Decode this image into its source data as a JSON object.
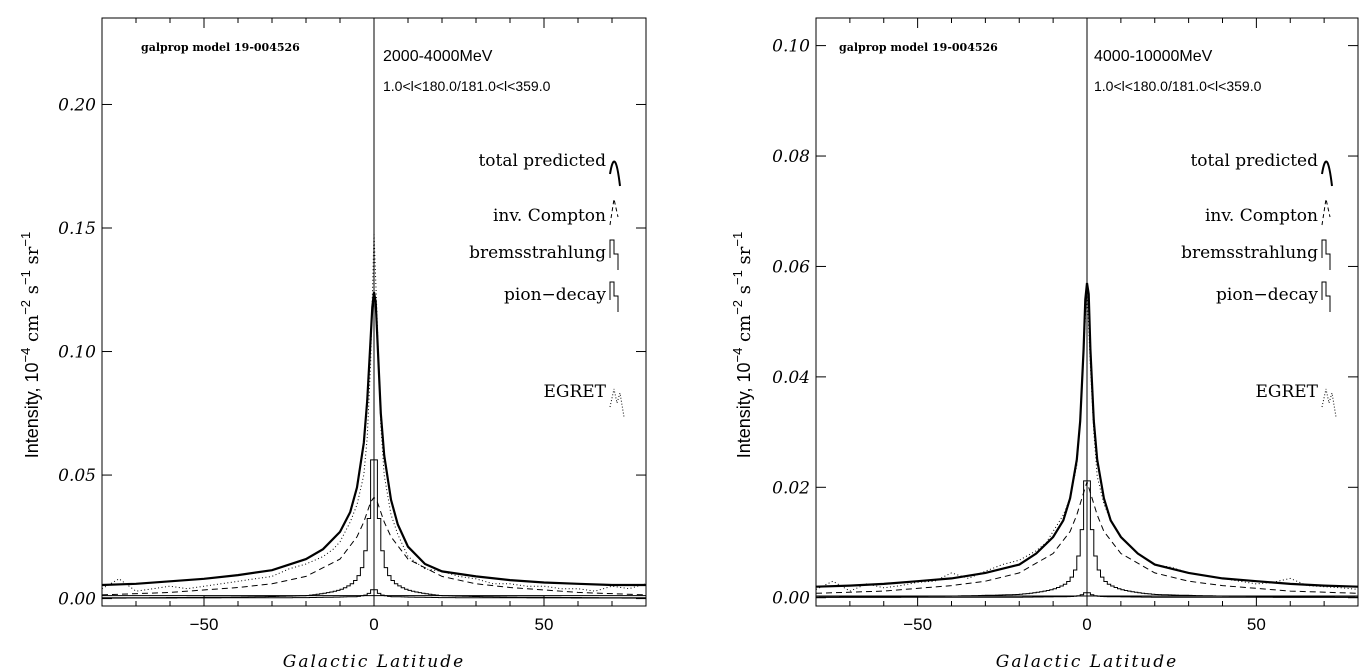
{
  "chart_data": [
    {
      "type": "line",
      "panel": "left",
      "model_label": "galprop model 19-004526",
      "energy_label": "2000-4000MeV",
      "region_label": "1.0<l<180.0/181.0<l<359.0",
      "xlabel": "Galactic Latitude",
      "ylabel": "Intensity, 10^-4 cm^-2 s^-1 sr^-1",
      "ylabel_parts": {
        "main": "Intensity, 10",
        "exp1": "−4",
        "cm": " cm",
        "exp2": "−2",
        "s": "  s",
        "exp3": "−1",
        "sr": " sr",
        "exp4": "−1"
      },
      "xlim": [
        -80,
        80
      ],
      "ylim": [
        -0.003,
        0.235
      ],
      "xticks": [
        -50,
        0,
        50
      ],
      "xtick_labels": [
        "−50",
        "0",
        "50"
      ],
      "yticks": [
        0.0,
        0.05,
        0.1,
        0.15,
        0.2
      ],
      "ytick_labels": [
        "0.00",
        "0.05",
        "0.10",
        "0.15",
        "0.20"
      ],
      "legend": {
        "placement": "right",
        "entries": [
          {
            "label": "total predicted",
            "style": "thick-solid"
          },
          {
            "label": "inv. Compton",
            "style": "dashed"
          },
          {
            "label": "bremsstrahlung",
            "style": "histogram"
          },
          {
            "label": "pion−decay",
            "style": "histogram"
          },
          {
            "label": "EGRET",
            "style": "dotted"
          }
        ]
      },
      "series": [
        {
          "name": "total predicted",
          "x": [
            -80,
            -70,
            -60,
            -50,
            -40,
            -30,
            -20,
            -15,
            -10,
            -7,
            -5,
            -3,
            -2,
            -1,
            -0.5,
            0,
            0.5,
            1,
            2,
            3,
            5,
            7,
            10,
            15,
            20,
            30,
            40,
            50,
            60,
            70,
            80
          ],
          "y": [
            0.0055,
            0.006,
            0.007,
            0.008,
            0.0095,
            0.0115,
            0.016,
            0.02,
            0.027,
            0.035,
            0.045,
            0.063,
            0.08,
            0.105,
            0.118,
            0.124,
            0.12,
            0.105,
            0.075,
            0.058,
            0.04,
            0.03,
            0.021,
            0.014,
            0.011,
            0.009,
            0.0075,
            0.0065,
            0.006,
            0.0055,
            0.0055
          ]
        },
        {
          "name": "inv. Compton",
          "x": [
            -80,
            -60,
            -40,
            -30,
            -20,
            -10,
            -5,
            -3,
            -1,
            0,
            1,
            3,
            5,
            10,
            20,
            30,
            40,
            60,
            80
          ],
          "y": [
            0.0015,
            0.0025,
            0.0045,
            0.006,
            0.009,
            0.016,
            0.025,
            0.031,
            0.039,
            0.041,
            0.039,
            0.031,
            0.025,
            0.016,
            0.009,
            0.006,
            0.0045,
            0.0025,
            0.0015
          ]
        },
        {
          "name": "pion−decay",
          "x": [
            -80,
            -40,
            -20,
            -10,
            -6,
            -4,
            -3,
            -2,
            -1,
            0,
            1,
            2,
            3,
            4,
            6,
            10,
            20,
            40,
            80
          ],
          "y": [
            0.0003,
            0.0006,
            0.0012,
            0.0035,
            0.0065,
            0.0105,
            0.015,
            0.025,
            0.042,
            0.075,
            0.042,
            0.025,
            0.015,
            0.0105,
            0.0065,
            0.0035,
            0.0012,
            0.0006,
            0.0003
          ]
        },
        {
          "name": "bremsstrahlung",
          "x": [
            -80,
            -20,
            -5,
            -2,
            -1,
            0,
            1,
            2,
            5,
            20,
            80
          ],
          "y": [
            0.0002,
            0.0004,
            0.0008,
            0.0016,
            0.0028,
            0.0045,
            0.0028,
            0.0016,
            0.0008,
            0.0004,
            0.0002
          ]
        },
        {
          "name": "EGRET",
          "x": [
            -80,
            -75,
            -70,
            -65,
            -60,
            -55,
            -50,
            -45,
            -40,
            -35,
            -30,
            -25,
            -20,
            -15,
            -12,
            -10,
            -7,
            -5,
            -3,
            -2,
            -1,
            0,
            1,
            2,
            3,
            5,
            7,
            10,
            15,
            20,
            25,
            30,
            35,
            40,
            45,
            50,
            55,
            60,
            65,
            70,
            75,
            80
          ],
          "y": [
            0.004,
            0.008,
            0.003,
            0.004,
            0.005,
            0.004,
            0.005,
            0.006,
            0.007,
            0.008,
            0.009,
            0.012,
            0.014,
            0.017,
            0.02,
            0.023,
            0.031,
            0.038,
            0.05,
            0.065,
            0.095,
            0.148,
            0.11,
            0.07,
            0.05,
            0.034,
            0.026,
            0.017,
            0.012,
            0.011,
            0.009,
            0.008,
            0.006,
            0.006,
            0.005,
            0.005,
            0.004,
            0.004,
            0.003,
            0.005,
            0.004,
            0.006
          ]
        }
      ],
      "reference_line_y": 0.0012
    },
    {
      "type": "line",
      "panel": "right",
      "model_label": "galprop model 19-004526",
      "energy_label": "4000-10000MeV",
      "region_label": "1.0<l<180.0/181.0<l<359.0",
      "xlabel": "Galactic Latitude",
      "ylabel": "Intensity, 10^-4 cm^-2 s^-1 sr^-1",
      "ylabel_parts": {
        "main": "Intensity, 10",
        "exp1": "−4",
        "cm": " cm",
        "exp2": "−2",
        "s": "  s",
        "exp3": "−1",
        "sr": " sr",
        "exp4": "−1"
      },
      "xlim": [
        -80,
        80
      ],
      "ylim": [
        -0.0015,
        0.105
      ],
      "xticks": [
        -50,
        0,
        50
      ],
      "xtick_labels": [
        "−50",
        "0",
        "50"
      ],
      "yticks": [
        0.0,
        0.02,
        0.04,
        0.06,
        0.08,
        0.1
      ],
      "ytick_labels": [
        "0.00",
        "0.02",
        "0.04",
        "0.06",
        "0.08",
        "0.10"
      ],
      "legend": {
        "placement": "right",
        "entries": [
          {
            "label": "total predicted",
            "style": "thick-solid"
          },
          {
            "label": "inv. Compton",
            "style": "dashed"
          },
          {
            "label": "bremsstrahlung",
            "style": "histogram"
          },
          {
            "label": "pion−decay",
            "style": "histogram"
          },
          {
            "label": "EGRET",
            "style": "dotted"
          }
        ]
      },
      "series": [
        {
          "name": "total predicted",
          "x": [
            -80,
            -70,
            -60,
            -50,
            -40,
            -30,
            -20,
            -15,
            -10,
            -7,
            -5,
            -3,
            -2,
            -1,
            -0.5,
            0,
            0.5,
            1,
            2,
            3,
            5,
            7,
            10,
            15,
            20,
            30,
            40,
            50,
            60,
            70,
            80
          ],
          "y": [
            0.002,
            0.0022,
            0.0025,
            0.003,
            0.0035,
            0.0045,
            0.006,
            0.008,
            0.011,
            0.014,
            0.018,
            0.025,
            0.032,
            0.045,
            0.054,
            0.057,
            0.055,
            0.045,
            0.032,
            0.025,
            0.018,
            0.014,
            0.011,
            0.008,
            0.006,
            0.0045,
            0.0035,
            0.003,
            0.0025,
            0.0022,
            0.002
          ]
        },
        {
          "name": "inv. Compton",
          "x": [
            -80,
            -60,
            -40,
            -30,
            -20,
            -10,
            -5,
            -3,
            -1,
            0,
            1,
            3,
            5,
            10,
            20,
            30,
            40,
            60,
            80
          ],
          "y": [
            0.0008,
            0.0012,
            0.0022,
            0.003,
            0.0045,
            0.008,
            0.012,
            0.015,
            0.019,
            0.021,
            0.019,
            0.015,
            0.012,
            0.008,
            0.0045,
            0.003,
            0.0022,
            0.0012,
            0.0008
          ]
        },
        {
          "name": "pion−decay",
          "x": [
            -80,
            -40,
            -20,
            -10,
            -6,
            -4,
            -3,
            -2,
            -1,
            0,
            1,
            2,
            3,
            4,
            6,
            10,
            20,
            40,
            80
          ],
          "y": [
            0.0001,
            0.0003,
            0.0006,
            0.0015,
            0.0026,
            0.0042,
            0.006,
            0.0095,
            0.016,
            0.028,
            0.016,
            0.0095,
            0.006,
            0.0042,
            0.0026,
            0.0015,
            0.0006,
            0.0003,
            0.0001
          ]
        },
        {
          "name": "bremsstrahlung",
          "x": [
            -80,
            -20,
            -5,
            -2,
            -1,
            0,
            1,
            2,
            5,
            20,
            80
          ],
          "y": [
            5e-05,
            0.0001,
            0.0002,
            0.0004,
            0.0007,
            0.0012,
            0.0007,
            0.0004,
            0.0002,
            0.0001,
            5e-05
          ]
        },
        {
          "name": "EGRET",
          "x": [
            -80,
            -75,
            -70,
            -65,
            -60,
            -55,
            -50,
            -45,
            -40,
            -35,
            -30,
            -25,
            -20,
            -15,
            -12,
            -10,
            -7,
            -5,
            -3,
            -2,
            -1,
            0,
            1,
            2,
            3,
            5,
            7,
            10,
            15,
            20,
            25,
            30,
            35,
            40,
            45,
            50,
            55,
            60,
            65,
            70,
            75,
            80
          ],
          "y": [
            0.0015,
            0.003,
            0.0012,
            0.0025,
            0.0018,
            0.0022,
            0.0028,
            0.003,
            0.0045,
            0.0035,
            0.0048,
            0.006,
            0.0068,
            0.0085,
            0.01,
            0.012,
            0.015,
            0.018,
            0.024,
            0.032,
            0.045,
            0.056,
            0.042,
            0.03,
            0.022,
            0.017,
            0.014,
            0.011,
            0.008,
            0.006,
            0.0055,
            0.0045,
            0.004,
            0.0035,
            0.003,
            0.0025,
            0.0028,
            0.0035,
            0.0022,
            0.002,
            0.0018,
            0.0015
          ]
        }
      ],
      "reference_line_y": 0.0003
    }
  ]
}
